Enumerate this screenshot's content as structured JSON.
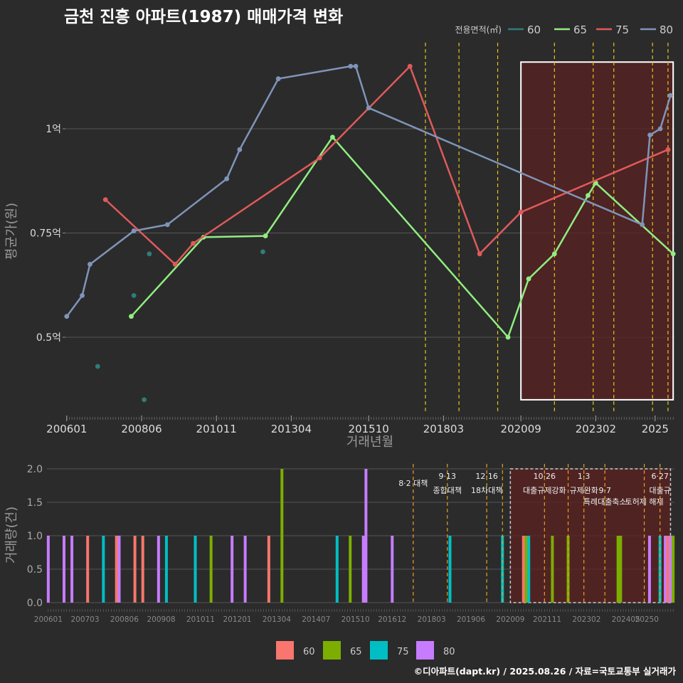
{
  "page": {
    "title": "금천 진흥 아파트(1987) 매매가격 변화",
    "footer": "©디아파트(dapt.kr) / 2025.08.26 / 자료=국토교통부 실거래가"
  },
  "colors": {
    "background": "#2b2b2b",
    "grid": "#555555",
    "policy_line": "#e6c619",
    "highlight_fill": "#5a2222",
    "highlight_border": "#ffffff",
    "top": {
      "60": "#2e7d7a",
      "65": "#90ee80",
      "75": "#e05a5a",
      "80": "#7f94b8"
    },
    "bottom": {
      "60": "#f8766d",
      "65": "#7cae00",
      "75": "#00bfc4",
      "80": "#c77cff"
    }
  },
  "chart_data": [
    {
      "type": "line",
      "title": "금천 진흥 아파트(1987) 매매가격 변화",
      "xlabel": "거래년월",
      "ylabel": "평균가(원)",
      "legend_title": "전용면적(㎡)",
      "legend_position": "top-right",
      "x_ticks": [
        "200601",
        "200806",
        "201011",
        "201304",
        "201510",
        "201803",
        "202009",
        "202302",
        "2025"
      ],
      "y_ticks": [
        {
          "value": 0.5,
          "label": "0.5억"
        },
        {
          "value": 0.75,
          "label": "0.75억"
        },
        {
          "value": 1.0,
          "label": "1억"
        }
      ],
      "ylim": [
        0.35,
        1.17
      ],
      "grid": true,
      "series": [
        {
          "name": "60",
          "style": "points",
          "points": [
            [
              "2007-01",
              0.43
            ],
            [
              "2008-03",
              0.6
            ],
            [
              "2008-07",
              0.35
            ],
            [
              "2008-09",
              0.7
            ],
            [
              "2012-05",
              0.705
            ]
          ]
        },
        {
          "name": "65",
          "style": "line",
          "points": [
            [
              "2008-02",
              0.55
            ],
            [
              "2010-06",
              0.74
            ],
            [
              "2012-06",
              0.743
            ],
            [
              "2014-08",
              0.98
            ],
            [
              "2020-04",
              0.5
            ],
            [
              "2020-12",
              0.64
            ],
            [
              "2021-10",
              0.7
            ],
            [
              "2022-11",
              0.84
            ],
            [
              "2023-02",
              0.87
            ],
            [
              "2025-08",
              0.7
            ]
          ]
        },
        {
          "name": "75",
          "style": "line",
          "points": [
            [
              "2007-04",
              0.83
            ],
            [
              "2009-07",
              0.675
            ],
            [
              "2010-02",
              0.725
            ],
            [
              "2014-03",
              0.93
            ],
            [
              "2017-02",
              1.15
            ],
            [
              "2019-05",
              0.7
            ],
            [
              "2020-09",
              0.8
            ],
            [
              "2025-06",
              0.95
            ]
          ]
        },
        {
          "name": "80",
          "style": "line",
          "points": [
            [
              "2006-01",
              0.55
            ],
            [
              "2006-07",
              0.6
            ],
            [
              "2006-10",
              0.675
            ],
            [
              "2008-03",
              0.755
            ],
            [
              "2009-04",
              0.77
            ],
            [
              "2011-03",
              0.88
            ],
            [
              "2011-08",
              0.95
            ],
            [
              "2012-11",
              1.12
            ],
            [
              "2015-03",
              1.15
            ],
            [
              "2015-05",
              1.15
            ],
            [
              "2015-10",
              1.05
            ],
            [
              "2024-08",
              0.77
            ],
            [
              "2024-11",
              0.985
            ],
            [
              "2025-03",
              1.0
            ],
            [
              "2025-07",
              1.08
            ]
          ]
        }
      ],
      "policy_lines": [
        "2017-08",
        "2018-09",
        "2019-12",
        "2021-10",
        "2023-01",
        "2023-09",
        "2024-12",
        "2025-06"
      ],
      "highlight_range": {
        "from": "2020-09",
        "to": "2025-08",
        "ymin": 0.35,
        "ymax": 1.16
      }
    },
    {
      "type": "bar",
      "ylabel": "거래량(건)",
      "x_ticks": [
        "200601",
        "200703",
        "200806",
        "200908",
        "201011",
        "201201",
        "201304",
        "201407",
        "201510",
        "201612",
        "201803",
        "201906",
        "202009",
        "202111",
        "202302",
        "202405",
        "20250"
      ],
      "y_ticks": [
        {
          "value": 0,
          "label": "0.0"
        },
        {
          "value": 0.5,
          "label": "0.5"
        },
        {
          "value": 1,
          "label": "1.0"
        },
        {
          "value": 1.5,
          "label": "1.5"
        },
        {
          "value": 2,
          "label": "2.0"
        }
      ],
      "ylim": [
        0,
        2.2
      ],
      "legend_position": "bottom",
      "legend_entries": [
        "60",
        "65",
        "75",
        "80"
      ],
      "bars": [
        {
          "date": "2006-01",
          "series": "80",
          "count": 1
        },
        {
          "date": "2006-07",
          "series": "80",
          "count": 1
        },
        {
          "date": "2006-10",
          "series": "80",
          "count": 1
        },
        {
          "date": "2007-04",
          "series": "60",
          "count": 1
        },
        {
          "date": "2007-10",
          "series": "75",
          "count": 1
        },
        {
          "date": "2008-03",
          "series": "65",
          "count": 1
        },
        {
          "date": "2008-03",
          "series": "60",
          "count": 1
        },
        {
          "date": "2008-04",
          "series": "80",
          "count": 1
        },
        {
          "date": "2008-10",
          "series": "60",
          "count": 1
        },
        {
          "date": "2009-01",
          "series": "60",
          "count": 1
        },
        {
          "date": "2009-07",
          "series": "80",
          "count": 1
        },
        {
          "date": "2009-10",
          "series": "75",
          "count": 1
        },
        {
          "date": "2010-09",
          "series": "75",
          "count": 1
        },
        {
          "date": "2011-03",
          "series": "65",
          "count": 1
        },
        {
          "date": "2011-11",
          "series": "80",
          "count": 1
        },
        {
          "date": "2012-04",
          "series": "80",
          "count": 1
        },
        {
          "date": "2013-01",
          "series": "60",
          "count": 1
        },
        {
          "date": "2013-06",
          "series": "65",
          "count": 2
        },
        {
          "date": "2015-03",
          "series": "75",
          "count": 1
        },
        {
          "date": "2015-08",
          "series": "65",
          "count": 1
        },
        {
          "date": "2016-01",
          "series": "80",
          "count": 1
        },
        {
          "date": "2016-02",
          "series": "80",
          "count": 2
        },
        {
          "date": "2016-12",
          "series": "80",
          "count": 1
        },
        {
          "date": "2018-10",
          "series": "75",
          "count": 1
        },
        {
          "date": "2020-06",
          "series": "75",
          "count": 1
        },
        {
          "date": "2021-02",
          "series": "60",
          "count": 1
        },
        {
          "date": "2021-03",
          "series": "65",
          "count": 1
        },
        {
          "date": "2021-04",
          "series": "75",
          "count": 1
        },
        {
          "date": "2022-01",
          "series": "65",
          "count": 1
        },
        {
          "date": "2022-07",
          "series": "65",
          "count": 1
        },
        {
          "date": "2024-02",
          "series": "65",
          "count": 1
        },
        {
          "date": "2024-03",
          "series": "65",
          "count": 1
        },
        {
          "date": "2025-02",
          "series": "80",
          "count": 1
        },
        {
          "date": "2025-06",
          "series": "75",
          "count": 1
        },
        {
          "date": "2025-08",
          "series": "80",
          "count": 1
        },
        {
          "date": "2025-09",
          "series": "60",
          "count": 1
        },
        {
          "date": "2025-10",
          "series": "80",
          "count": 1
        },
        {
          "date": "2025-11",
          "series": "65",
          "count": 1
        }
      ],
      "policy_lines": [
        {
          "date": "2017-08",
          "label": "8·2 대책"
        },
        {
          "date": "2018-09",
          "label": "9·13\n종합대책"
        },
        {
          "date": "2019-12",
          "label": "12·16\n18차대책"
        },
        {
          "date": "2020-06",
          "label": ""
        },
        {
          "date": "2021-10",
          "label": "10·26\n대출규제강화"
        },
        {
          "date": "2022-07",
          "label": ""
        },
        {
          "date": "2023-01",
          "label": "1·3\n규제완화"
        },
        {
          "date": "2023-09",
          "label": "9·7\n특례대출축소"
        },
        {
          "date": "2024-12",
          "label": "토허제 해제"
        },
        {
          "date": "2025-06",
          "label": "6·27\n대출규"
        }
      ],
      "highlight_range": {
        "from": "2020-09",
        "to": "2025-10",
        "ymin": 0,
        "ymax": 2
      }
    }
  ]
}
